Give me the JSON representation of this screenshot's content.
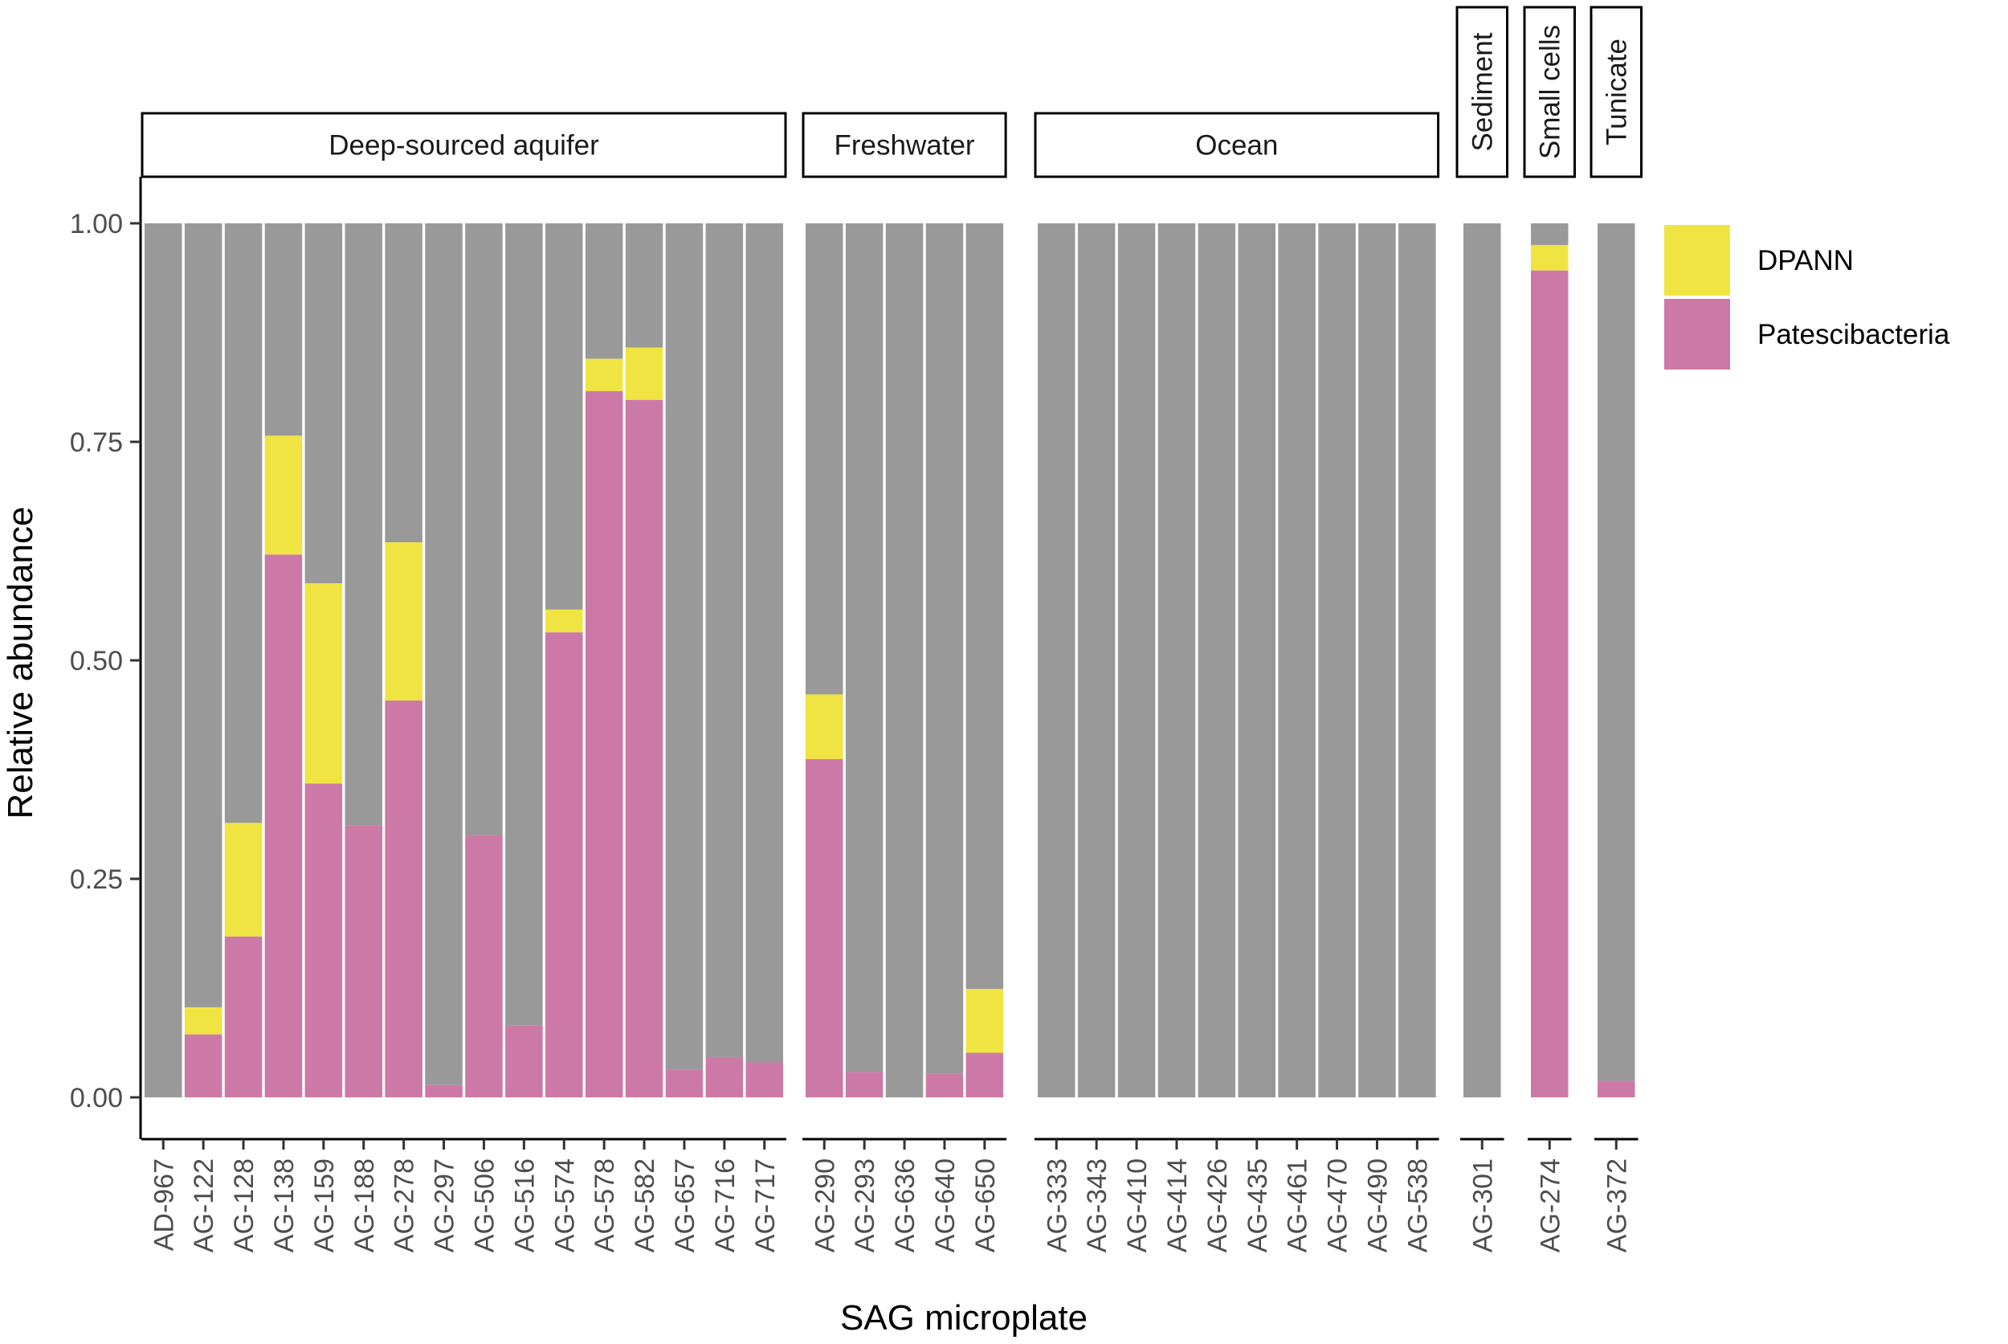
{
  "chart_data": {
    "type": "bar",
    "stacked": true,
    "xlabel": "SAG microplate",
    "ylabel": "Relative abundance",
    "ylim": [
      0,
      1
    ],
    "yticks": [
      "0.00",
      "0.25",
      "0.50",
      "0.75",
      "1.00"
    ],
    "ytick_values": [
      0,
      0.25,
      0.5,
      0.75,
      1.0
    ],
    "grid": false,
    "legend_position": "right",
    "legend": [
      {
        "name": "DPANN",
        "color": "#f0e442"
      },
      {
        "name": "Patescibacteria",
        "color": "#cc79a7"
      }
    ],
    "other_color": "#999999",
    "facets": [
      {
        "label": "Deep-sourced aquifer",
        "vertical_label": false,
        "bars": [
          {
            "category": "AD-967",
            "patescibacteria": 0.0,
            "dpann": 0.0
          },
          {
            "category": "AG-122",
            "patescibacteria": 0.072,
            "dpann": 0.031
          },
          {
            "category": "AG-128",
            "patescibacteria": 0.184,
            "dpann": 0.13
          },
          {
            "category": "AG-138",
            "patescibacteria": 0.621,
            "dpann": 0.136
          },
          {
            "category": "AG-159",
            "patescibacteria": 0.359,
            "dpann": 0.229
          },
          {
            "category": "AG-188",
            "patescibacteria": 0.311,
            "dpann": 0.0
          },
          {
            "category": "AG-278",
            "patescibacteria": 0.454,
            "dpann": 0.181
          },
          {
            "category": "AG-297",
            "patescibacteria": 0.014,
            "dpann": 0.0
          },
          {
            "category": "AG-506",
            "patescibacteria": 0.3,
            "dpann": 0.0
          },
          {
            "category": "AG-516",
            "patescibacteria": 0.082,
            "dpann": 0.0
          },
          {
            "category": "AG-574",
            "patescibacteria": 0.532,
            "dpann": 0.026
          },
          {
            "category": "AG-578",
            "patescibacteria": 0.808,
            "dpann": 0.037
          },
          {
            "category": "AG-582",
            "patescibacteria": 0.798,
            "dpann": 0.06
          },
          {
            "category": "AG-657",
            "patescibacteria": 0.032,
            "dpann": 0.0
          },
          {
            "category": "AG-716",
            "patescibacteria": 0.046,
            "dpann": 0.0
          },
          {
            "category": "AG-717",
            "patescibacteria": 0.04,
            "dpann": 0.0
          }
        ]
      },
      {
        "label": "Freshwater",
        "vertical_label": false,
        "bars": [
          {
            "category": "AG-290",
            "patescibacteria": 0.387,
            "dpann": 0.074
          },
          {
            "category": "AG-293",
            "patescibacteria": 0.029,
            "dpann": 0.0
          },
          {
            "category": "AG-636",
            "patescibacteria": 0.0,
            "dpann": 0.0
          },
          {
            "category": "AG-640",
            "patescibacteria": 0.027,
            "dpann": 0.0
          },
          {
            "category": "AG-650",
            "patescibacteria": 0.051,
            "dpann": 0.073
          }
        ]
      },
      {
        "label": "Ocean",
        "vertical_label": false,
        "bars": [
          {
            "category": "AG-333",
            "patescibacteria": 0.0,
            "dpann": 0.0
          },
          {
            "category": "AG-343",
            "patescibacteria": 0.0,
            "dpann": 0.0
          },
          {
            "category": "AG-410",
            "patescibacteria": 0.0,
            "dpann": 0.0
          },
          {
            "category": "AG-414",
            "patescibacteria": 0.0,
            "dpann": 0.0
          },
          {
            "category": "AG-426",
            "patescibacteria": 0.0,
            "dpann": 0.0
          },
          {
            "category": "AG-435",
            "patescibacteria": 0.0,
            "dpann": 0.0
          },
          {
            "category": "AG-461",
            "patescibacteria": 0.0,
            "dpann": 0.0
          },
          {
            "category": "AG-470",
            "patescibacteria": 0.0,
            "dpann": 0.0
          },
          {
            "category": "AG-490",
            "patescibacteria": 0.0,
            "dpann": 0.0
          },
          {
            "category": "AG-538",
            "patescibacteria": 0.0,
            "dpann": 0.0
          }
        ]
      },
      {
        "label": "Sediment",
        "vertical_label": true,
        "bars": [
          {
            "category": "AG-301",
            "patescibacteria": 0.0,
            "dpann": 0.0
          }
        ]
      },
      {
        "label": "Small cells",
        "vertical_label": true,
        "bars": [
          {
            "category": "AG-274",
            "patescibacteria": 0.946,
            "dpann": 0.029
          }
        ]
      },
      {
        "label": "Tunicate",
        "vertical_label": true,
        "bars": [
          {
            "category": "AG-372",
            "patescibacteria": 0.019,
            "dpann": 0.0
          }
        ]
      }
    ]
  }
}
